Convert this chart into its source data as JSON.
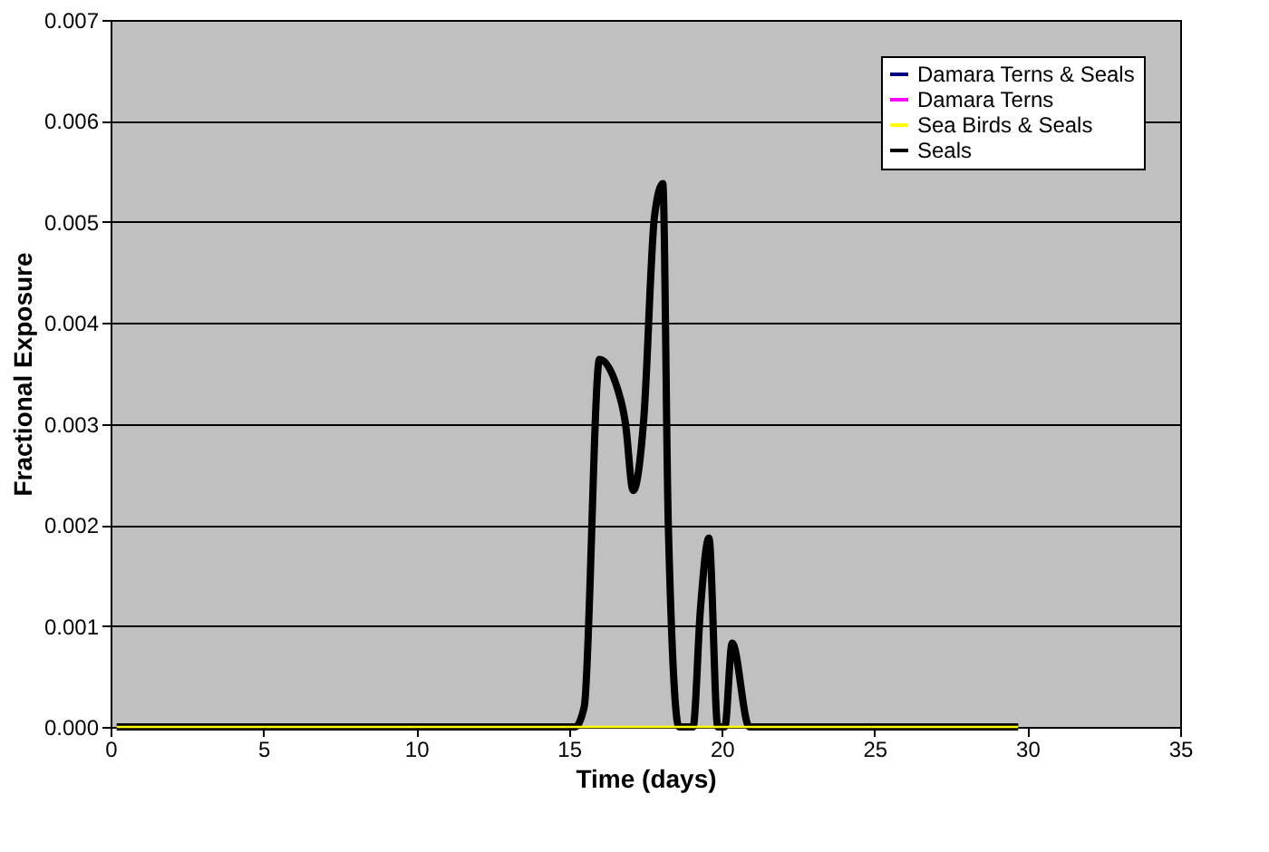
{
  "chart_data": {
    "type": "line",
    "xlabel": "Time (days)",
    "ylabel": "Fractional Exposure",
    "xlim": [
      0,
      35
    ],
    "xticks": [
      0,
      5,
      10,
      15,
      20,
      25,
      30,
      35
    ],
    "ylim": [
      0,
      0.007
    ],
    "yticks": [
      {
        "value": 0,
        "label": "0.000"
      },
      {
        "value": 0.001,
        "label": "0.001"
      },
      {
        "value": 0.002,
        "label": "0.002"
      },
      {
        "value": 0.003,
        "label": "0.003"
      },
      {
        "value": 0.004,
        "label": "0.004"
      },
      {
        "value": 0.005,
        "label": "0.005"
      },
      {
        "value": 0.006,
        "label": "0.006"
      },
      {
        "value": 0.007,
        "label": "0.007"
      }
    ],
    "grid": "y",
    "legend": "top right",
    "marker": "none",
    "line_style": "solid",
    "series": [
      {
        "name": "Damara Terns & Seals",
        "color": "#000080"
      },
      {
        "name": "Damara Terns",
        "color": "#ff00ff"
      },
      {
        "name": "Sea Birds & Seals",
        "color": "#ffff00",
        "x": [
          0.2,
          29.7
        ],
        "values": [
          0,
          0
        ]
      },
      {
        "name": "Seals",
        "color": "#000000",
        "x": [
          0.2,
          15.2,
          15.5,
          16.0,
          16.7,
          16.85,
          17.1,
          17.45,
          17.8,
          18.07,
          18.25,
          18.6,
          19.06,
          19.3,
          19.58,
          19.87,
          20.1,
          20.34,
          20.9,
          29.7
        ],
        "values": [
          0,
          0,
          0.0002,
          0.00364,
          0.00323,
          0.003,
          0.00234,
          0.00306,
          0.00506,
          0.00538,
          0.002,
          0,
          0,
          0.00116,
          0.00187,
          0,
          0,
          0.00083,
          0,
          0
        ]
      }
    ]
  }
}
